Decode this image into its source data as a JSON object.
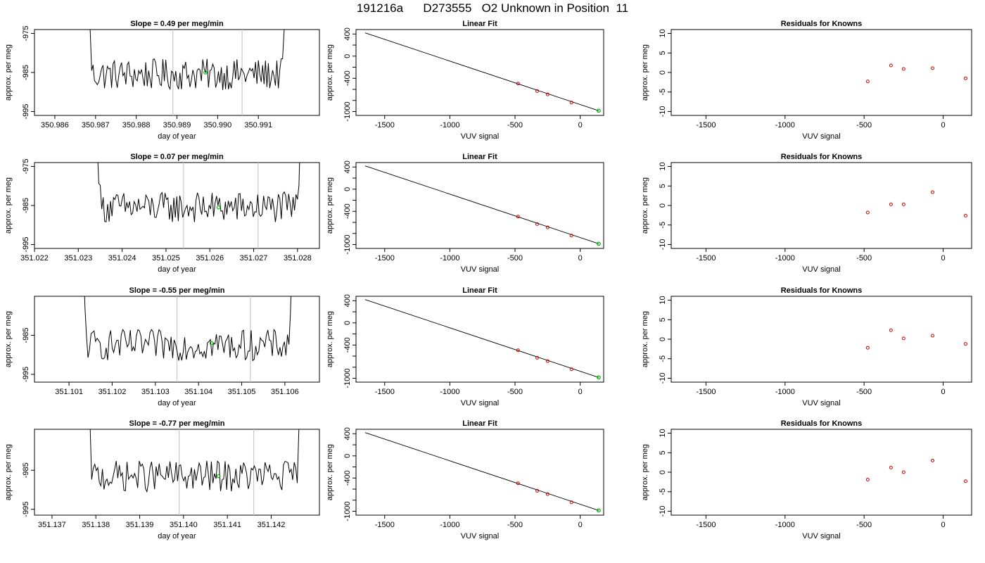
{
  "title": "191216a      D273555   O2 Unknown in Position  11",
  "colors": {
    "line": "#000000",
    "vline": "#c8c8c8",
    "known_point": "#cc0000",
    "unknown_point": "#00bb00",
    "axis": "#000000"
  },
  "chart_data": [
    {
      "type": "line",
      "panel": "drift",
      "row": 1,
      "title": "Slope =  0.49  per meg/min",
      "xlabel": "day of year",
      "ylabel": "approx. per meg",
      "xlim": [
        350.9855,
        350.9925
      ],
      "ylim": [
        -996,
        -974
      ],
      "xticks": [
        350.986,
        350.987,
        350.988,
        350.989,
        350.99,
        350.991
      ],
      "xtick_labels": [
        "350.986",
        "350.987",
        "350.988",
        "350.989",
        "350.990",
        "350.991"
      ],
      "yticks": [
        -975,
        -985,
        -995
      ],
      "ytick_labels": [
        "-975",
        "-985",
        "-995"
      ],
      "start": 350.9868,
      "end": 350.9917,
      "baseline": -985.5,
      "vlines": [
        350.9889,
        350.9906
      ],
      "point": {
        "x": 350.9897,
        "y": -985
      },
      "series": []
    },
    {
      "type": "line",
      "panel": "drift",
      "row": 2,
      "title": "Slope =  0.07  per meg/min",
      "xlabel": "day of year",
      "ylabel": "approx. per meg",
      "xlim": [
        351.022,
        351.0285
      ],
      "ylim": [
        -996,
        -974
      ],
      "xticks": [
        351.022,
        351.023,
        351.024,
        351.025,
        351.026,
        351.027,
        351.028
      ],
      "xtick_labels": [
        "351.022",
        "351.023",
        "351.024",
        "351.025",
        "351.026",
        "351.027",
        "351.028"
      ],
      "yticks": [
        -975,
        -985,
        -995
      ],
      "ytick_labels": [
        "-975",
        "-985",
        "-995"
      ],
      "start": 351.0234,
      "end": 351.0281,
      "baseline": -985.5,
      "vlines": [
        351.0254,
        351.0271
      ],
      "point": {
        "x": 351.0262,
        "y": -985.5
      },
      "series": []
    },
    {
      "type": "line",
      "panel": "drift",
      "row": 3,
      "title": "Slope =  -0.55  per meg/min",
      "xlabel": "day of year",
      "ylabel": "approx. per meg",
      "xlim": [
        351.1002,
        351.1068
      ],
      "ylim": [
        -997,
        -975
      ],
      "xticks": [
        351.101,
        351.102,
        351.103,
        351.104,
        351.105,
        351.106
      ],
      "xtick_labels": [
        "351.101",
        "351.102",
        "351.103",
        "351.104",
        "351.105",
        "351.106"
      ],
      "yticks": [
        -985,
        -995
      ],
      "ytick_labels": [
        "-985",
        "-995"
      ],
      "start": 351.1013,
      "end": 351.1062,
      "baseline": -987.5,
      "vlines": [
        351.1035,
        351.1052
      ],
      "point": {
        "x": 351.1043,
        "y": -987
      },
      "series": []
    },
    {
      "type": "line",
      "panel": "drift",
      "row": 4,
      "title": "Slope =  -0.77  per meg/min",
      "xlabel": "day of year",
      "ylabel": "approx. per meg",
      "xlim": [
        351.1366,
        351.1431
      ],
      "ylim": [
        -996.5,
        -974.5
      ],
      "xticks": [
        351.137,
        351.138,
        351.139,
        351.14,
        351.141,
        351.142
      ],
      "xtick_labels": [
        "351.137",
        "351.138",
        "351.139",
        "351.140",
        "351.141",
        "351.142"
      ],
      "yticks": [
        -985,
        -995
      ],
      "ytick_labels": [
        "-985",
        "-995"
      ],
      "start": 351.1378,
      "end": 351.1427,
      "baseline": -986.5,
      "vlines": [
        351.1399,
        351.1416
      ],
      "point": {
        "x": 351.1408,
        "y": -986.5
      },
      "series": []
    },
    {
      "type": "scatter",
      "panel": "fit",
      "row": 1,
      "title": "Linear Fit",
      "xlabel": "VUV signal",
      "ylabel": "approx. per meg",
      "xlim": [
        -1720,
        180
      ],
      "ylim": [
        -1070,
        480
      ],
      "xticks": [
        -1500,
        -1000,
        -500,
        0
      ],
      "xtick_labels": [
        "-1500",
        "-1000",
        "-500",
        "0"
      ],
      "yticks": [
        400,
        0,
        -400,
        -1000
      ],
      "ytick_labels": [
        "400",
        "0",
        "-400",
        "-1000"
      ],
      "yminor": [
        200,
        -200,
        -600,
        -800
      ],
      "line": [
        [
          -1650,
          420
        ],
        [
          142,
          -985
        ]
      ],
      "knowns": [
        [
          -477,
          -495
        ],
        [
          -330,
          -630
        ],
        [
          -250,
          -690
        ],
        [
          -67,
          -838
        ]
      ],
      "unknown": [
        142,
        -985
      ]
    },
    {
      "type": "scatter",
      "panel": "fit",
      "row": 2,
      "title": "Linear Fit",
      "xlabel": "VUV signal",
      "ylabel": "approx. per meg",
      "xlim": [
        -1720,
        180
      ],
      "ylim": [
        -1070,
        480
      ],
      "xticks": [
        -1500,
        -1000,
        -500,
        0
      ],
      "xtick_labels": [
        "-1500",
        "-1000",
        "-500",
        "0"
      ],
      "yticks": [
        400,
        0,
        -400,
        -1000
      ],
      "ytick_labels": [
        "400",
        "0",
        "-400",
        "-1000"
      ],
      "yminor": [
        200,
        -200,
        -600,
        -800
      ],
      "line": [
        [
          -1650,
          420
        ],
        [
          142,
          -985
        ]
      ],
      "knowns": [
        [
          -477,
          -495
        ],
        [
          -330,
          -630
        ],
        [
          -250,
          -690
        ],
        [
          -67,
          -838
        ]
      ],
      "unknown": [
        142,
        -985
      ]
    },
    {
      "type": "scatter",
      "panel": "fit",
      "row": 3,
      "title": "Linear Fit",
      "xlabel": "VUV signal",
      "ylabel": "approx. per meg",
      "xlim": [
        -1720,
        180
      ],
      "ylim": [
        -1070,
        480
      ],
      "xticks": [
        -1500,
        -1000,
        -500,
        0
      ],
      "xtick_labels": [
        "-1500",
        "-1000",
        "-500",
        "0"
      ],
      "yticks": [
        400,
        0,
        -400,
        -1000
      ],
      "ytick_labels": [
        "400",
        "0",
        "-400",
        "-1000"
      ],
      "yminor": [
        200,
        -200,
        -600,
        -800
      ],
      "line": [
        [
          -1650,
          420
        ],
        [
          142,
          -985
        ]
      ],
      "knowns": [
        [
          -477,
          -495
        ],
        [
          -330,
          -630
        ],
        [
          -250,
          -690
        ],
        [
          -67,
          -838
        ]
      ],
      "unknown": [
        142,
        -985
      ]
    },
    {
      "type": "scatter",
      "panel": "fit",
      "row": 4,
      "title": "Linear Fit",
      "xlabel": "VUV signal",
      "ylabel": "approx. per meg",
      "xlim": [
        -1720,
        180
      ],
      "ylim": [
        -1070,
        480
      ],
      "xticks": [
        -1500,
        -1000,
        -500,
        0
      ],
      "xtick_labels": [
        "-1500",
        "-1000",
        "-500",
        "0"
      ],
      "yticks": [
        400,
        0,
        -400,
        -1000
      ],
      "ytick_labels": [
        "400",
        "0",
        "-400",
        "-1000"
      ],
      "yminor": [
        200,
        -200,
        -600,
        -800
      ],
      "line": [
        [
          -1650,
          420
        ],
        [
          142,
          -985
        ]
      ],
      "knowns": [
        [
          -477,
          -495
        ],
        [
          -330,
          -630
        ],
        [
          -250,
          -690
        ],
        [
          -67,
          -838
        ]
      ],
      "unknown": [
        142,
        -985
      ]
    },
    {
      "type": "scatter",
      "panel": "resid",
      "row": 1,
      "title": "Residuals for Knowns",
      "xlabel": "VUV signal",
      "ylabel": "approx. per meg",
      "xlim": [
        -1720,
        180
      ],
      "ylim": [
        -11,
        11
      ],
      "xticks": [
        -1500,
        -1000,
        -500,
        0
      ],
      "xtick_labels": [
        "-1500",
        "-1000",
        "-500",
        "0"
      ],
      "yticks": [
        10,
        5,
        0,
        -5,
        -10
      ],
      "ytick_labels": [
        "10",
        "5",
        "0",
        "-5",
        "-10"
      ],
      "knowns": [
        [
          -477,
          -2.3
        ],
        [
          -330,
          1.8
        ],
        [
          -250,
          0.9
        ],
        [
          -67,
          1.1
        ],
        [
          142,
          -1.5
        ]
      ]
    },
    {
      "type": "scatter",
      "panel": "resid",
      "row": 2,
      "title": "Residuals for Knowns",
      "xlabel": "VUV signal",
      "ylabel": "approx. per meg",
      "xlim": [
        -1720,
        180
      ],
      "ylim": [
        -11,
        11
      ],
      "xticks": [
        -1500,
        -1000,
        -500,
        0
      ],
      "xtick_labels": [
        "-1500",
        "-1000",
        "-500",
        "0"
      ],
      "yticks": [
        10,
        5,
        0,
        -5,
        -10
      ],
      "ytick_labels": [
        "10",
        "5",
        "0",
        "-5",
        "-10"
      ],
      "knowns": [
        [
          -477,
          -1.8
        ],
        [
          -330,
          0.3
        ],
        [
          -250,
          0.3
        ],
        [
          -67,
          3.4
        ],
        [
          142,
          -2.6
        ]
      ]
    },
    {
      "type": "scatter",
      "panel": "resid",
      "row": 3,
      "title": "Residuals for Knowns",
      "xlabel": "VUV signal",
      "ylabel": "approx. per meg",
      "xlim": [
        -1720,
        180
      ],
      "ylim": [
        -11,
        11
      ],
      "xticks": [
        -1500,
        -1000,
        -500,
        0
      ],
      "xtick_labels": [
        "-1500",
        "-1000",
        "-500",
        "0"
      ],
      "yticks": [
        10,
        5,
        0,
        -5,
        -10
      ],
      "ytick_labels": [
        "10",
        "5",
        "0",
        "-5",
        "-10"
      ],
      "knowns": [
        [
          -477,
          -2.2
        ],
        [
          -330,
          2.3
        ],
        [
          -250,
          0.2
        ],
        [
          -67,
          0.9
        ],
        [
          142,
          -1.2
        ]
      ]
    },
    {
      "type": "scatter",
      "panel": "resid",
      "row": 4,
      "title": "Residuals for Knowns",
      "xlabel": "VUV signal",
      "ylabel": "approx. per meg",
      "xlim": [
        -1720,
        180
      ],
      "ylim": [
        -11,
        11
      ],
      "xticks": [
        -1500,
        -1000,
        -500,
        0
      ],
      "xtick_labels": [
        "-1500",
        "-1000",
        "-500",
        "0"
      ],
      "yticks": [
        10,
        5,
        0,
        -5,
        -10
      ],
      "ytick_labels": [
        "10",
        "5",
        "0",
        "-5",
        "-10"
      ],
      "knowns": [
        [
          -477,
          -1.9
        ],
        [
          -330,
          1.2
        ],
        [
          -250,
          0.0
        ],
        [
          -67,
          3.0
        ],
        [
          142,
          -2.3
        ]
      ]
    }
  ]
}
